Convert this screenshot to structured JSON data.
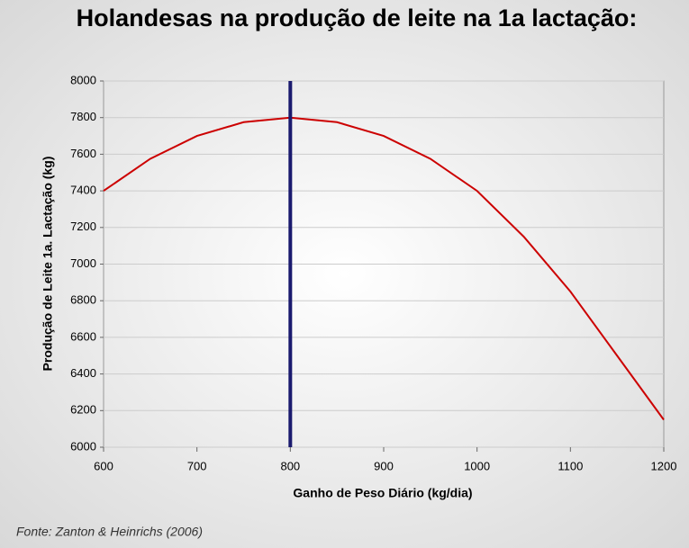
{
  "chart_data": {
    "type": "line",
    "title": "Holandesas na produção de leite na 1a lactação:",
    "x_label": "Ganho de Peso Diário (kg/dia)",
    "y_label": "Produção de Leite 1a. Lactação (kg)",
    "source": "Fonte: Zanton & Heinrichs (2006)",
    "x": [
      600,
      650,
      700,
      750,
      800,
      850,
      900,
      950,
      1000,
      1050,
      1100,
      1150,
      1200
    ],
    "series": [
      {
        "color": "#cc0000",
        "values": [
          7400,
          7575,
          7700,
          7775,
          7800,
          7775,
          7700,
          7575,
          7400,
          7150,
          6850,
          6500,
          6150
        ]
      }
    ],
    "vline": {
      "x": 800,
      "color": "#1a1a6e"
    },
    "xlim": [
      600,
      1200
    ],
    "xticks": [
      600,
      700,
      800,
      900,
      1000,
      1100,
      1200
    ],
    "ylim": [
      6000,
      8000
    ],
    "yticks": [
      6000,
      6200,
      6400,
      6600,
      6800,
      7000,
      7200,
      7400,
      7600,
      7800,
      8000
    ],
    "grid": true
  }
}
